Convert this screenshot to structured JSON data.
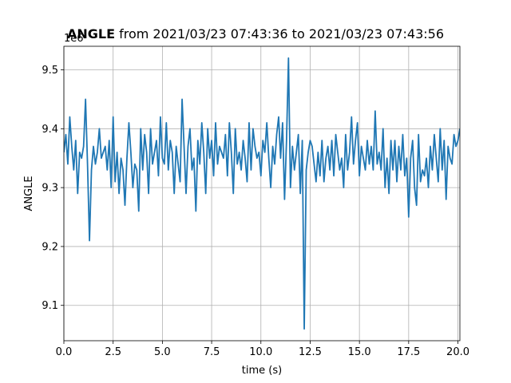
{
  "chart_data": {
    "type": "line",
    "title_bold": "ANGLE",
    "title_rest": "from 2021/03/23 07:43:36 to 2021/03/23 07:43:56",
    "xlabel": "time (s)",
    "ylabel": "ANGLE",
    "y_offset_text": "1e6",
    "xlim": [
      0,
      20.1
    ],
    "ylim": [
      9.04,
      9.54
    ],
    "x_ticks": [
      0,
      2.5,
      5,
      7.5,
      10,
      12.5,
      15,
      17.5,
      20
    ],
    "x_tick_labels": [
      "0.0",
      "2.5",
      "5.0",
      "7.5",
      "10.0",
      "12.5",
      "15.0",
      "17.5",
      "20.0"
    ],
    "y_ticks": [
      9.1,
      9.2,
      9.3,
      9.4,
      9.5
    ],
    "y_tick_labels": [
      "9.1",
      "9.2",
      "9.3",
      "9.4",
      "9.5"
    ],
    "grid": true,
    "line_color": "#1f77b4",
    "series": [
      {
        "x": [
          0.0,
          0.1,
          0.2,
          0.3,
          0.4,
          0.5,
          0.6,
          0.7,
          0.8,
          0.9,
          1.0,
          1.1,
          1.2,
          1.3,
          1.4,
          1.5,
          1.6,
          1.7,
          1.8,
          1.9,
          2.0,
          2.1,
          2.2,
          2.3,
          2.4,
          2.5,
          2.6,
          2.7,
          2.8,
          2.9,
          3.0,
          3.1,
          3.2,
          3.3,
          3.4,
          3.5,
          3.6,
          3.7,
          3.8,
          3.9,
          4.0,
          4.1,
          4.2,
          4.3,
          4.4,
          4.5,
          4.6,
          4.7,
          4.8,
          4.9,
          5.0,
          5.1,
          5.2,
          5.3,
          5.4,
          5.5,
          5.6,
          5.7,
          5.8,
          5.9,
          6.0,
          6.1,
          6.2,
          6.3,
          6.4,
          6.5,
          6.6,
          6.7,
          6.8,
          6.9,
          7.0,
          7.1,
          7.2,
          7.3,
          7.4,
          7.5,
          7.6,
          7.7,
          7.8,
          7.9,
          8.0,
          8.1,
          8.2,
          8.3,
          8.4,
          8.5,
          8.6,
          8.7,
          8.8,
          8.9,
          9.0,
          9.1,
          9.2,
          9.3,
          9.4,
          9.5,
          9.6,
          9.7,
          9.8,
          9.9,
          10.0,
          10.1,
          10.2,
          10.3,
          10.4,
          10.5,
          10.6,
          10.7,
          10.8,
          10.9,
          11.0,
          11.1,
          11.2,
          11.3,
          11.4,
          11.5,
          11.6,
          11.7,
          11.8,
          11.9,
          12.0,
          12.1,
          12.2,
          12.3,
          12.4,
          12.5,
          12.6,
          12.7,
          12.8,
          12.9,
          13.0,
          13.1,
          13.2,
          13.3,
          13.4,
          13.5,
          13.6,
          13.7,
          13.8,
          13.9,
          14.0,
          14.1,
          14.2,
          14.3,
          14.4,
          14.5,
          14.6,
          14.7,
          14.8,
          14.9,
          15.0,
          15.1,
          15.2,
          15.3,
          15.4,
          15.5,
          15.6,
          15.7,
          15.8,
          15.9,
          16.0,
          16.1,
          16.2,
          16.3,
          16.4,
          16.5,
          16.6,
          16.7,
          16.8,
          16.9,
          17.0,
          17.1,
          17.2,
          17.3,
          17.4,
          17.5,
          17.6,
          17.7,
          17.8,
          17.9,
          18.0,
          18.1,
          18.2,
          18.3,
          18.4,
          18.5,
          18.6,
          18.7,
          18.8,
          18.9,
          19.0,
          19.1,
          19.2,
          19.3,
          19.4,
          19.5,
          19.6,
          19.7,
          19.8,
          19.9,
          20.0,
          20.1
        ],
        "y": [
          9.36,
          9.39,
          9.34,
          9.42,
          9.37,
          9.33,
          9.38,
          9.29,
          9.36,
          9.35,
          9.37,
          9.45,
          9.34,
          9.21,
          9.33,
          9.37,
          9.34,
          9.36,
          9.4,
          9.35,
          9.36,
          9.37,
          9.33,
          9.38,
          9.3,
          9.42,
          9.31,
          9.36,
          9.29,
          9.35,
          9.33,
          9.27,
          9.35,
          9.41,
          9.36,
          9.3,
          9.34,
          9.33,
          9.26,
          9.4,
          9.33,
          9.39,
          9.36,
          9.29,
          9.4,
          9.34,
          9.36,
          9.38,
          9.32,
          9.42,
          9.35,
          9.34,
          9.41,
          9.33,
          9.38,
          9.36,
          9.29,
          9.37,
          9.34,
          9.31,
          9.45,
          9.37,
          9.29,
          9.37,
          9.4,
          9.33,
          9.35,
          9.26,
          9.38,
          9.34,
          9.41,
          9.36,
          9.29,
          9.4,
          9.35,
          9.38,
          9.32,
          9.41,
          9.34,
          9.37,
          9.36,
          9.35,
          9.39,
          9.32,
          9.41,
          9.36,
          9.29,
          9.4,
          9.34,
          9.36,
          9.33,
          9.38,
          9.35,
          9.31,
          9.41,
          9.33,
          9.4,
          9.37,
          9.35,
          9.36,
          9.32,
          9.38,
          9.36,
          9.41,
          9.35,
          9.3,
          9.37,
          9.34,
          9.39,
          9.42,
          9.35,
          9.41,
          9.28,
          9.38,
          9.52,
          9.3,
          9.37,
          9.33,
          9.36,
          9.39,
          9.29,
          9.38,
          9.06,
          9.33,
          9.36,
          9.38,
          9.37,
          9.34,
          9.31,
          9.36,
          9.32,
          9.38,
          9.31,
          9.35,
          9.37,
          9.33,
          9.38,
          9.32,
          9.39,
          9.36,
          9.33,
          9.35,
          9.3,
          9.39,
          9.33,
          9.36,
          9.42,
          9.34,
          9.38,
          9.41,
          9.32,
          9.37,
          9.35,
          9.33,
          9.38,
          9.34,
          9.37,
          9.33,
          9.43,
          9.34,
          9.36,
          9.33,
          9.4,
          9.3,
          9.35,
          9.29,
          9.38,
          9.33,
          9.38,
          9.31,
          9.37,
          9.33,
          9.39,
          9.32,
          9.35,
          9.25,
          9.35,
          9.38,
          9.3,
          9.27,
          9.39,
          9.31,
          9.33,
          9.32,
          9.35,
          9.3,
          9.37,
          9.33,
          9.39,
          9.35,
          9.31,
          9.4,
          9.33,
          9.38,
          9.28,
          9.37,
          9.35,
          9.34,
          9.39,
          9.37,
          9.38,
          9.4
        ]
      }
    ]
  }
}
